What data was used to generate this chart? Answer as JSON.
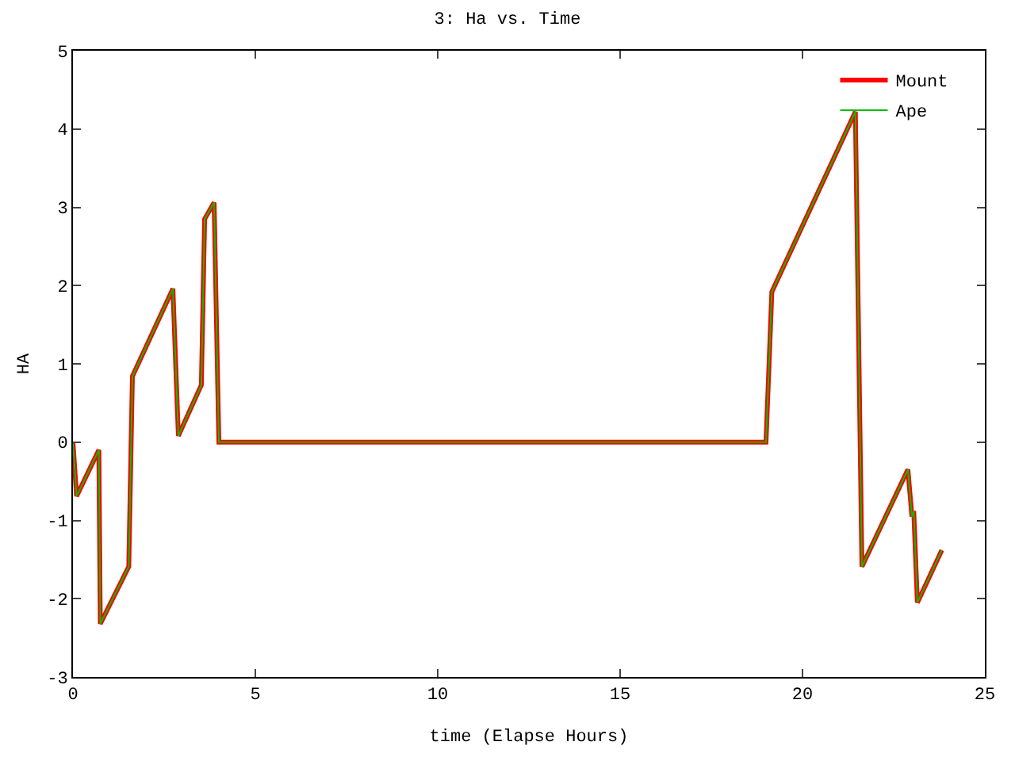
{
  "chart_data": {
    "type": "line",
    "title": "3: Ha vs. Time",
    "xlabel": "time (Elapse Hours)",
    "ylabel": "HA",
    "xlim": [
      0,
      25
    ],
    "xticks": [
      0,
      5,
      10,
      15,
      20,
      25
    ],
    "ylim": [
      -3,
      5
    ],
    "yticks": [
      -3,
      -2,
      -1,
      0,
      1,
      2,
      3,
      4,
      5
    ],
    "legend": "top right",
    "marker": "none",
    "line_style": "solid",
    "series": [
      {
        "name": "Mount",
        "color": "#ff0000",
        "x": [
          0,
          0.1,
          0.71,
          0.75,
          1.53,
          1.63,
          2.74,
          2.89,
          3.52,
          3.61,
          3.87,
          4.0,
          19.0,
          19.16,
          21.45,
          21.63,
          22.89,
          23.0,
          23.05,
          23.15,
          23.82
        ],
        "values": [
          0,
          -0.69,
          -0.1,
          -2.32,
          -1.59,
          0.84,
          1.96,
          0.08,
          0.73,
          2.85,
          3.06,
          0,
          0,
          1.92,
          4.22,
          -1.59,
          -0.35,
          -0.95,
          -0.88,
          -2.05,
          -1.38
        ]
      },
      {
        "name": "Ape",
        "color": "#00c000",
        "x": [
          0,
          0.1,
          0.71,
          0.75,
          1.53,
          1.63,
          2.74,
          2.89,
          3.52,
          3.61,
          3.87,
          4.0,
          19.0,
          19.16,
          21.45,
          21.63,
          22.89,
          23.0,
          23.05,
          23.15,
          23.82
        ],
        "values": [
          0,
          -0.69,
          -0.1,
          -2.32,
          -1.59,
          0.84,
          1.96,
          0.08,
          0.73,
          2.85,
          3.06,
          0,
          0,
          1.92,
          4.22,
          -1.59,
          -0.35,
          -0.95,
          -0.88,
          -2.05,
          -1.38
        ]
      }
    ]
  }
}
